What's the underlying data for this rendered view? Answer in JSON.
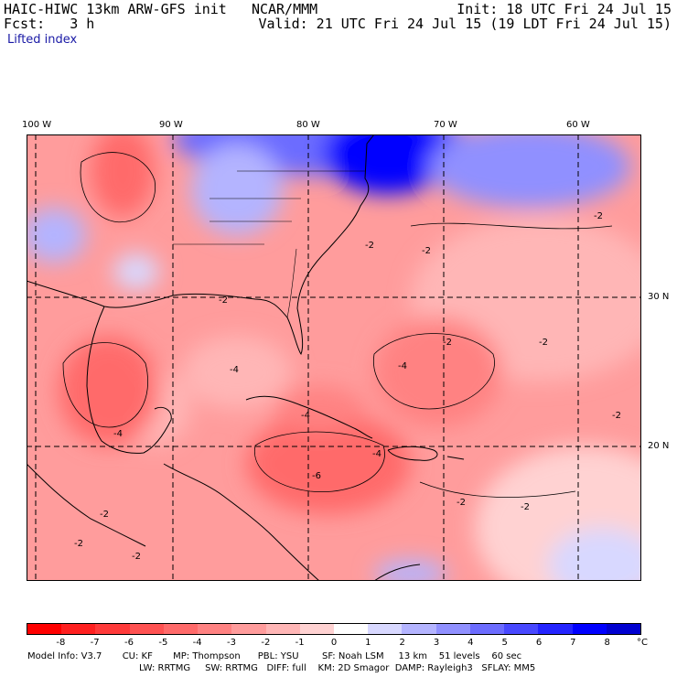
{
  "header": {
    "model_title": "HAIC-HIWC 13km ARW-GFS init",
    "org": "NCAR/MMM",
    "init": "Init: 18 UTC Fri 24 Jul 15",
    "fcst_label": "Fcst:",
    "fcst_value": "3 h",
    "valid": "Valid: 21 UTC Fri 24 Jul 15 (19 LDT Fri 24 Jul 15)",
    "field": "Lifted index"
  },
  "axes": {
    "lon_ticks": [
      "100 W",
      "90 W",
      "80 W",
      "70 W",
      "60 W"
    ],
    "lat_ticks": [
      "30 N",
      "20 N"
    ]
  },
  "contour_labels": [
    "-2",
    "-2",
    "-2",
    "-2",
    "-2",
    "-2",
    "-2",
    "-2",
    "-2",
    "-4",
    "-4",
    "-4",
    "-4",
    "-4",
    "-6",
    "-2",
    "-2",
    "-2"
  ],
  "colorbar": {
    "labels": [
      "-8",
      "-7",
      "-6",
      "-5",
      "-4",
      "-3",
      "-2",
      "-1",
      "0",
      "1",
      "2",
      "3",
      "4",
      "5",
      "6",
      "7",
      "8"
    ],
    "unit": "°C",
    "colors": [
      "#ff0000",
      "#ff2020",
      "#ff3a3a",
      "#ff5252",
      "#ff6a6a",
      "#ff8282",
      "#ff9c9c",
      "#ffb6b6",
      "#ffd2d2",
      "#ffffff",
      "#d8d8ff",
      "#b4b4ff",
      "#9090ff",
      "#6c6cff",
      "#4848ff",
      "#2424ff",
      "#0000ff",
      "#0000d0"
    ]
  },
  "model_info": {
    "line1": [
      "Model Info: V3.7",
      "CU: KF",
      "MP: Thompson",
      "PBL: YSU",
      "SF: Noah LSM",
      "13 km",
      "51 levels",
      "60 sec"
    ],
    "line2": [
      "LW: RRTMG",
      "SW: RRTMG",
      "DIFF: full",
      "KM: 2D Smagor",
      "DAMP: Rayleigh3",
      "SFLAY: MM5"
    ]
  }
}
